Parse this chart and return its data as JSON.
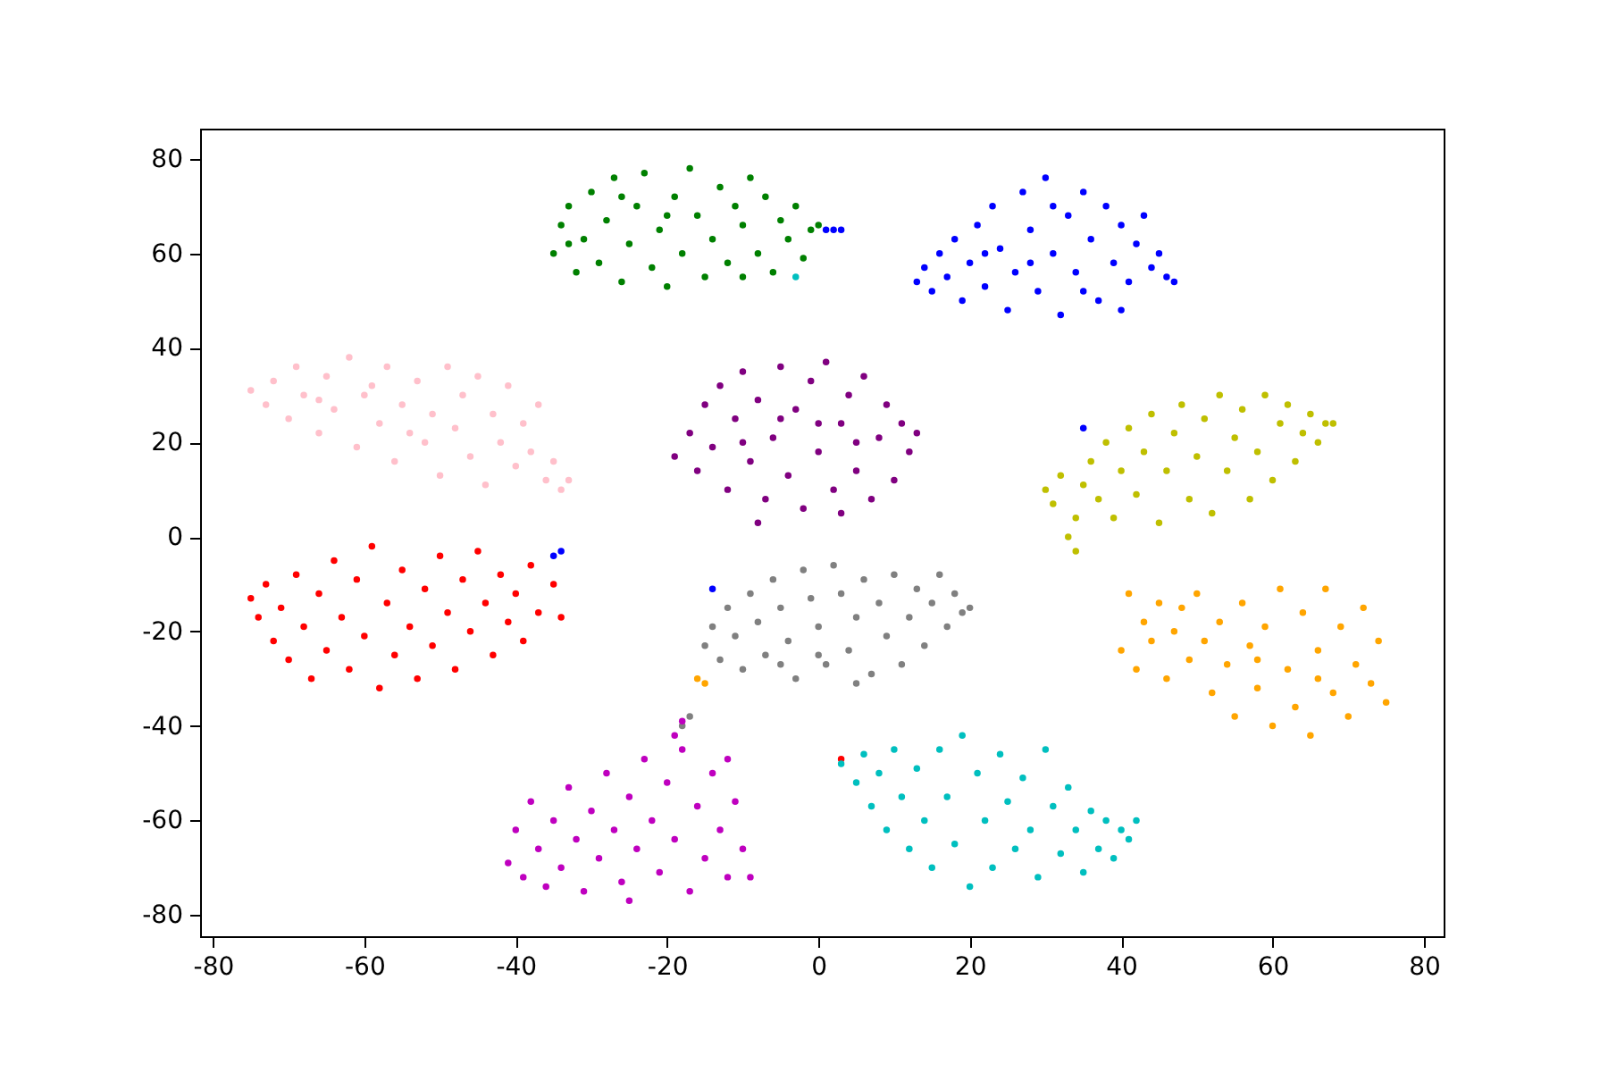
{
  "chart_data": {
    "type": "scatter",
    "marker": "circle",
    "grid": false,
    "xlim": [
      -81.7,
      82.6
    ],
    "ylim": [
      -84.5,
      86.4
    ],
    "xticks": [
      -80,
      -60,
      -40,
      -20,
      0,
      20,
      40,
      60,
      80
    ],
    "yticks": [
      -80,
      -60,
      -40,
      -20,
      0,
      20,
      40,
      60,
      80
    ],
    "series": [
      {
        "color": "#008000",
        "x": [
          -35,
          -34,
          -33,
          -32,
          -31,
          -30,
          -29,
          -28,
          -27,
          -26,
          -25,
          -24,
          -23,
          -22,
          -21,
          -20,
          -19,
          -18,
          -17,
          -16,
          -15,
          -14,
          -13,
          -12,
          -11,
          -10,
          -9,
          -8,
          -7,
          -6,
          -5,
          -4,
          -3,
          -2,
          -1,
          0,
          -26,
          -33,
          -20,
          -10
        ],
        "values": [
          60,
          66,
          70,
          56,
          63,
          73,
          58,
          67,
          76,
          54,
          62,
          70,
          77,
          57,
          65,
          53,
          72,
          60,
          78,
          68,
          55,
          63,
          74,
          58,
          70,
          66,
          76,
          60,
          72,
          56,
          67,
          63,
          70,
          59,
          65,
          66,
          72,
          62,
          68,
          55
        ]
      },
      {
        "color": "#0000ff",
        "x": [
          13,
          14,
          15,
          16,
          17,
          18,
          19,
          20,
          21,
          22,
          23,
          24,
          25,
          26,
          27,
          28,
          29,
          30,
          31,
          32,
          33,
          34,
          35,
          36,
          37,
          38,
          39,
          40,
          41,
          42,
          43,
          44,
          45,
          46,
          47,
          28,
          22,
          35,
          31,
          40,
          1,
          2,
          3,
          -35,
          -34,
          -14,
          35
        ],
        "values": [
          54,
          57,
          52,
          60,
          55,
          63,
          50,
          58,
          66,
          53,
          70,
          61,
          48,
          56,
          73,
          65,
          52,
          76,
          60,
          47,
          68,
          56,
          73,
          63,
          50,
          70,
          58,
          66,
          54,
          62,
          68,
          57,
          60,
          55,
          54,
          58,
          60,
          52,
          70,
          48,
          65,
          65,
          65,
          -4,
          -3,
          -11,
          23
        ]
      },
      {
        "color": "#ffc0cb",
        "x": [
          -75,
          -73,
          -72,
          -70,
          -69,
          -68,
          -66,
          -65,
          -64,
          -62,
          -61,
          -60,
          -58,
          -57,
          -56,
          -55,
          -53,
          -52,
          -51,
          -50,
          -49,
          -48,
          -47,
          -46,
          -45,
          -44,
          -43,
          -42,
          -41,
          -40,
          -39,
          -38,
          -37,
          -36,
          -35,
          -34,
          -33,
          -59,
          -54,
          -66
        ],
        "values": [
          31,
          28,
          33,
          25,
          36,
          30,
          22,
          34,
          27,
          38,
          19,
          30,
          24,
          36,
          16,
          28,
          33,
          20,
          26,
          13,
          36,
          23,
          30,
          17,
          34,
          11,
          26,
          20,
          32,
          15,
          24,
          18,
          28,
          12,
          16,
          10,
          12,
          32,
          22,
          29
        ]
      },
      {
        "color": "#800080",
        "x": [
          -19,
          -17,
          -16,
          -15,
          -14,
          -13,
          -12,
          -11,
          -10,
          -9,
          -8,
          -8,
          -7,
          -6,
          -5,
          -4,
          -3,
          -2,
          -1,
          0,
          1,
          2,
          3,
          4,
          5,
          6,
          7,
          8,
          9,
          10,
          11,
          12,
          13,
          -5,
          0,
          5,
          -10,
          3
        ],
        "values": [
          17,
          22,
          14,
          28,
          19,
          32,
          10,
          25,
          35,
          16,
          3,
          29,
          8,
          21,
          36,
          13,
          27,
          6,
          33,
          18,
          37,
          10,
          24,
          30,
          14,
          34,
          8,
          21,
          28,
          12,
          24,
          18,
          22,
          25,
          24,
          20,
          20,
          5
        ]
      },
      {
        "color": "#bfbf00",
        "x": [
          30,
          31,
          32,
          33,
          34,
          34,
          35,
          36,
          37,
          38,
          39,
          40,
          41,
          42,
          43,
          44,
          45,
          46,
          47,
          48,
          49,
          50,
          51,
          52,
          53,
          54,
          55,
          56,
          57,
          58,
          59,
          60,
          61,
          62,
          63,
          64,
          65,
          66,
          67,
          68
        ],
        "values": [
          10,
          7,
          13,
          0,
          4,
          -3,
          11,
          16,
          8,
          20,
          4,
          14,
          23,
          9,
          18,
          26,
          3,
          14,
          22,
          28,
          8,
          17,
          25,
          5,
          30,
          14,
          21,
          27,
          8,
          18,
          30,
          12,
          24,
          28,
          16,
          22,
          26,
          20,
          24,
          24
        ]
      },
      {
        "color": "#ff0000",
        "x": [
          -75,
          -74,
          -73,
          -72,
          -71,
          -70,
          -69,
          -68,
          -67,
          -66,
          -65,
          -64,
          -63,
          -62,
          -61,
          -60,
          -59,
          -58,
          -57,
          -56,
          -55,
          -54,
          -53,
          -52,
          -51,
          -50,
          -49,
          -48,
          -47,
          -46,
          -45,
          -44,
          -43,
          -42,
          -41,
          -40,
          -39,
          -38,
          -37,
          -35,
          -34,
          3
        ],
        "values": [
          -13,
          -17,
          -10,
          -22,
          -15,
          -26,
          -8,
          -19,
          -30,
          -12,
          -24,
          -5,
          -17,
          -28,
          -9,
          -21,
          -2,
          -32,
          -14,
          -25,
          -7,
          -19,
          -30,
          -11,
          -23,
          -4,
          -16,
          -28,
          -9,
          -20,
          -3,
          -14,
          -25,
          -8,
          -18,
          -12,
          -22,
          -6,
          -16,
          -10,
          -17,
          -47
        ]
      },
      {
        "color": "#808080",
        "x": [
          -15,
          -14,
          -13,
          -12,
          -11,
          -10,
          -9,
          -8,
          -7,
          -6,
          -5,
          -4,
          -3,
          -2,
          -1,
          0,
          1,
          2,
          3,
          4,
          5,
          6,
          7,
          8,
          9,
          10,
          11,
          12,
          13,
          14,
          15,
          16,
          17,
          18,
          19,
          20,
          -5,
          5,
          0,
          -18,
          -17
        ],
        "values": [
          -23,
          -19,
          -26,
          -15,
          -21,
          -28,
          -12,
          -18,
          -25,
          -9,
          -15,
          -22,
          -30,
          -7,
          -13,
          -19,
          -27,
          -6,
          -12,
          -24,
          -17,
          -9,
          -29,
          -14,
          -21,
          -8,
          -27,
          -17,
          -11,
          -23,
          -14,
          -8,
          -19,
          -12,
          -16,
          -15,
          -27,
          -31,
          -25,
          -40,
          -38
        ]
      },
      {
        "color": "#ffa500",
        "x": [
          40,
          41,
          42,
          43,
          44,
          45,
          46,
          47,
          48,
          49,
          50,
          51,
          52,
          53,
          54,
          55,
          56,
          57,
          58,
          59,
          60,
          61,
          62,
          63,
          64,
          65,
          66,
          67,
          68,
          69,
          70,
          71,
          72,
          73,
          74,
          75,
          66,
          58,
          -15,
          -16
        ],
        "values": [
          -24,
          -12,
          -28,
          -18,
          -22,
          -14,
          -30,
          -20,
          -15,
          -26,
          -12,
          -22,
          -33,
          -18,
          -27,
          -38,
          -14,
          -23,
          -32,
          -19,
          -40,
          -11,
          -28,
          -36,
          -16,
          -42,
          -24,
          -11,
          -33,
          -19,
          -38,
          -27,
          -15,
          -31,
          -22,
          -35,
          -30,
          -26,
          -31,
          -30
        ]
      },
      {
        "color": "#bf00bf",
        "x": [
          -41,
          -40,
          -39,
          -38,
          -37,
          -36,
          -35,
          -34,
          -33,
          -32,
          -31,
          -30,
          -29,
          -28,
          -27,
          -26,
          -25,
          -24,
          -23,
          -22,
          -21,
          -20,
          -19,
          -18,
          -17,
          -16,
          -15,
          -14,
          -13,
          -12,
          -11,
          -10,
          -9,
          -19,
          -18,
          -12,
          -25
        ],
        "values": [
          -69,
          -62,
          -72,
          -56,
          -66,
          -74,
          -60,
          -70,
          -53,
          -64,
          -75,
          -58,
          -68,
          -50,
          -62,
          -73,
          -55,
          -66,
          -47,
          -60,
          -71,
          -52,
          -64,
          -45,
          -75,
          -57,
          -68,
          -50,
          -62,
          -72,
          -56,
          -66,
          -72,
          -42,
          -39,
          -47,
          -77
        ]
      },
      {
        "color": "#00bfbf",
        "x": [
          3,
          5,
          6,
          7,
          8,
          9,
          10,
          11,
          12,
          13,
          14,
          15,
          16,
          17,
          18,
          19,
          20,
          21,
          22,
          23,
          24,
          25,
          26,
          27,
          28,
          29,
          30,
          31,
          32,
          33,
          34,
          35,
          36,
          37,
          38,
          39,
          40,
          41,
          42,
          -3
        ],
        "values": [
          -48,
          -52,
          -46,
          -57,
          -50,
          -62,
          -45,
          -55,
          -66,
          -49,
          -60,
          -70,
          -45,
          -55,
          -65,
          -42,
          -74,
          -50,
          -60,
          -70,
          -46,
          -56,
          -66,
          -51,
          -62,
          -72,
          -45,
          -57,
          -67,
          -53,
          -62,
          -71,
          -58,
          -66,
          -60,
          -68,
          -62,
          -64,
          -60,
          55
        ]
      }
    ]
  }
}
